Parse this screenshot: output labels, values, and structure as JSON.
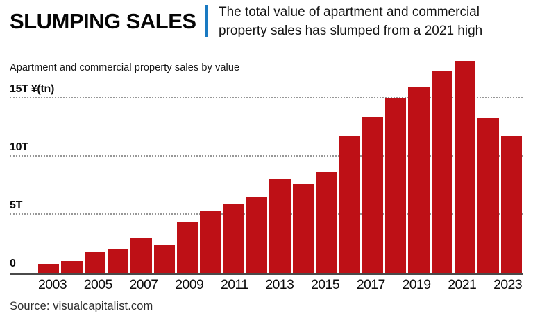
{
  "header": {
    "title": "SLUMPING SALES",
    "subtitle": "The total value of apartment and commercial property sales has slumped from a 2021 high"
  },
  "chart": {
    "label": "Apartment and commercial property sales by value",
    "y_ticks": [
      {
        "value": 15,
        "label": "15T ¥(tn)"
      },
      {
        "value": 10,
        "label": "10T"
      },
      {
        "value": 5,
        "label": "5T"
      },
      {
        "value": 0,
        "label": "0"
      }
    ]
  },
  "chart_data": {
    "type": "bar",
    "title": "Apartment and commercial property sales by value",
    "categories": [
      "2003",
      "2004",
      "2005",
      "2006",
      "2007",
      "2008",
      "2009",
      "2010",
      "2011",
      "2012",
      "2013",
      "2014",
      "2015",
      "2016",
      "2017",
      "2018",
      "2019",
      "2020",
      "2021",
      "2022",
      "2023"
    ],
    "values": [
      0.8,
      1.0,
      1.8,
      2.1,
      3.0,
      2.4,
      4.4,
      5.3,
      5.9,
      6.5,
      8.1,
      7.6,
      8.7,
      11.8,
      13.4,
      15.0,
      16.0,
      17.4,
      18.2,
      13.3,
      11.7
    ],
    "unit": "¥(tn)",
    "ylabel": "¥(tn)",
    "ylim": [
      0,
      19
    ],
    "y_gridlines": [
      5,
      10,
      15
    ],
    "x_ticks_shown": [
      "2003",
      "2005",
      "2007",
      "2009",
      "2011",
      "2013",
      "2015",
      "2017",
      "2019",
      "2021",
      "2023"
    ],
    "grid": "dotted horizontal, behind bars",
    "legend": "none",
    "bar_color": "#be1016"
  },
  "source": "Source: visualcapitalist.com",
  "colors": {
    "bar_red": "#be1016",
    "accent_blue": "#1a7ac2",
    "axis_line": "#4a4a4a"
  }
}
